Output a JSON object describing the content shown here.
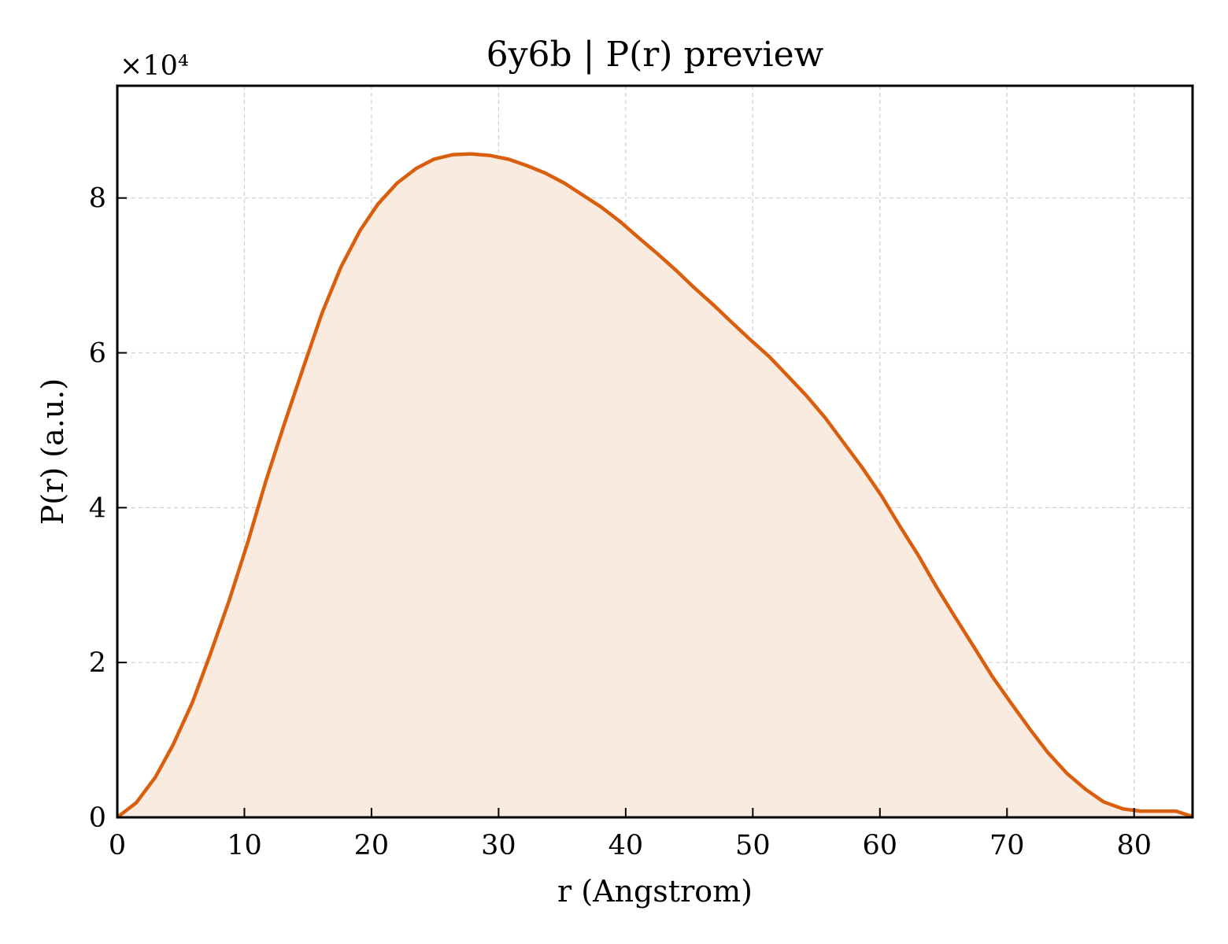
{
  "chart_data": {
    "type": "area",
    "title": "6y6b | P(r) preview",
    "xlabel": "r (Angstrom)",
    "ylabel": "P(r) (a.u.)",
    "y_multiplier_label": "×10⁴",
    "xlim": [
      0,
      84.6
    ],
    "ylim": [
      0,
      9.45
    ],
    "x_ticks": [
      0,
      10,
      20,
      30,
      40,
      50,
      60,
      70,
      80
    ],
    "x_tick_labels": [
      "0",
      "10",
      "20",
      "30",
      "40",
      "50",
      "60",
      "70",
      "80"
    ],
    "y_ticks": [
      0,
      2,
      4,
      6,
      8
    ],
    "y_tick_labels": [
      "0",
      "2",
      "4",
      "6",
      "8"
    ],
    "grid": true,
    "colors": {
      "line": "#d95f0e",
      "fill": "#f9ebe0"
    },
    "series": [
      {
        "x": [
          0,
          1.5,
          3,
          4.4,
          5.9,
          7.3,
          8.8,
          10.3,
          11.7,
          13.2,
          14.7,
          16.1,
          17.6,
          19.1,
          20.5,
          22.0,
          23.5,
          24.9,
          26.4,
          27.8,
          29.3,
          30.8,
          32.2,
          33.7,
          35.2,
          36.6,
          38.1,
          39.6,
          41.0,
          42.5,
          44.0,
          45.4,
          46.9,
          48.3,
          49.8,
          51.3,
          52.7,
          54.2,
          55.7,
          57.1,
          58.6,
          60.1,
          61.5,
          63.0,
          64.4,
          65.9,
          67.4,
          68.8,
          70.3,
          71.8,
          73.2,
          74.7,
          76.2,
          77.6,
          79.1,
          80.5,
          82.0,
          83.3,
          84.6
        ],
        "y": [
          0,
          0.19,
          0.52,
          0.94,
          1.48,
          2.1,
          2.8,
          3.57,
          4.35,
          5.11,
          5.84,
          6.51,
          7.11,
          7.58,
          7.92,
          8.19,
          8.38,
          8.5,
          8.56,
          8.57,
          8.55,
          8.5,
          8.42,
          8.32,
          8.19,
          8.04,
          7.88,
          7.69,
          7.49,
          7.28,
          7.06,
          6.84,
          6.62,
          6.4,
          6.17,
          5.95,
          5.71,
          5.45,
          5.16,
          4.85,
          4.52,
          4.16,
          3.78,
          3.39,
          2.99,
          2.59,
          2.2,
          1.83,
          1.48,
          1.14,
          0.84,
          0.57,
          0.36,
          0.2,
          0.11,
          0.08,
          0.08,
          0.08,
          0.01
        ]
      }
    ]
  }
}
